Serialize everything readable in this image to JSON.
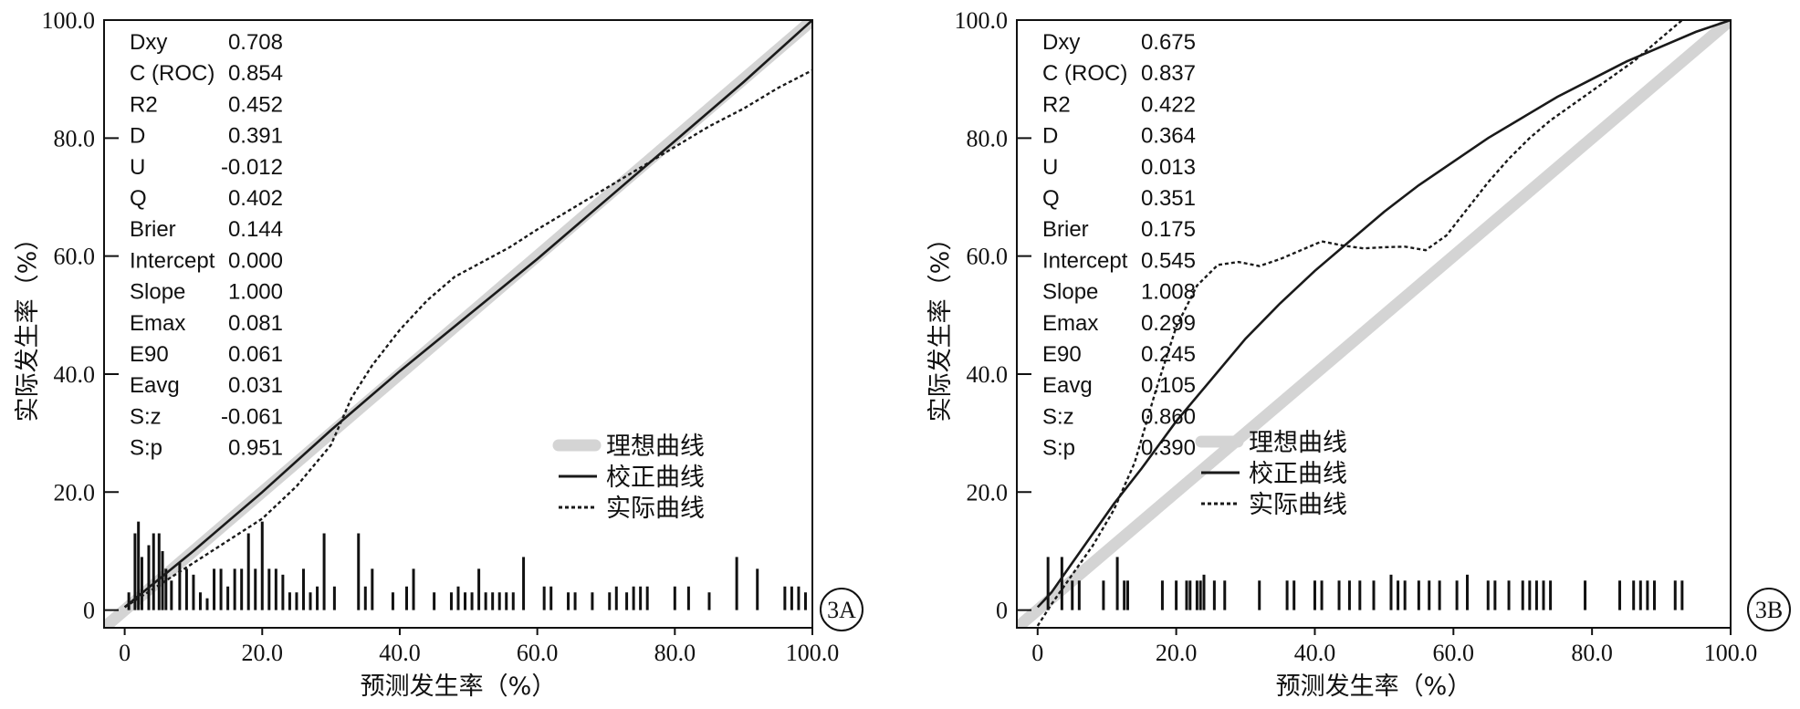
{
  "chart_data": [
    {
      "type": "line",
      "panel_label": "3A",
      "xlabel": "预测发生率（%）",
      "ylabel": "实际发生率（%）",
      "xlim": [
        -3,
        100
      ],
      "ylim": [
        -3,
        100
      ],
      "x_ticks": [
        {
          "value": 0,
          "label": "0"
        },
        {
          "value": 20,
          "label": "20.0"
        },
        {
          "value": 40,
          "label": "40.0"
        },
        {
          "value": 60,
          "label": "60.0"
        },
        {
          "value": 80,
          "label": "80.0"
        },
        {
          "value": 100,
          "label": "100.0"
        }
      ],
      "y_ticks": [
        {
          "value": 0,
          "label": "0"
        },
        {
          "value": 20,
          "label": "20.0"
        },
        {
          "value": 40,
          "label": "40.0"
        },
        {
          "value": 60,
          "label": "60.0"
        },
        {
          "value": 80,
          "label": "80.0"
        },
        {
          "value": 100,
          "label": "100.0"
        }
      ],
      "stats": [
        {
          "name": "Dxy",
          "value": "0.708"
        },
        {
          "name": "C (ROC)",
          "value": "0.854"
        },
        {
          "name": "R2",
          "value": "0.452"
        },
        {
          "name": "D",
          "value": "0.391"
        },
        {
          "name": "U",
          "value": "-0.012"
        },
        {
          "name": "Q",
          "value": "0.402"
        },
        {
          "name": "Brier",
          "value": "0.144"
        },
        {
          "name": "Intercept",
          "value": "0.000"
        },
        {
          "name": "Slope",
          "value": "1.000"
        },
        {
          "name": "Emax",
          "value": "0.081"
        },
        {
          "name": "E90",
          "value": "0.061"
        },
        {
          "name": "Eavg",
          "value": "0.031"
        },
        {
          "name": "S:z",
          "value": "-0.061"
        },
        {
          "name": "S:p",
          "value": "0.951"
        }
      ],
      "series": [
        {
          "name": "理想曲线",
          "style": "ideal",
          "x": [
            -3,
            100
          ],
          "y": [
            -3,
            100
          ]
        },
        {
          "name": "校正曲线",
          "style": "solid",
          "x": [
            0,
            10,
            20,
            30,
            40,
            50,
            60,
            70,
            80,
            90,
            100
          ],
          "y": [
            0.5,
            10,
            20,
            30.5,
            40.5,
            50,
            59.5,
            69.5,
            79.5,
            89.5,
            100
          ]
        },
        {
          "name": "实际曲线",
          "style": "dotted",
          "x": [
            0,
            4,
            8,
            12,
            16,
            20,
            25,
            30,
            33,
            36,
            40,
            44,
            48,
            52,
            56,
            60,
            65,
            70,
            75,
            80,
            85,
            90,
            95,
            100
          ],
          "y": [
            0.5,
            3.5,
            6.5,
            9.5,
            12.5,
            15.5,
            21,
            28,
            36,
            41.5,
            47.5,
            52.5,
            56.5,
            59,
            61.5,
            64.5,
            68,
            71.5,
            75,
            78.5,
            82,
            85,
            88.5,
            91.5
          ]
        }
      ],
      "histogram": {
        "x": [
          0.6,
          1.5,
          2.0,
          2.5,
          3.5,
          4.2,
          5.0,
          5.5,
          6.0,
          6.8,
          8.0,
          9.0,
          10.0,
          11.0,
          12.0,
          13.0,
          14.0,
          15.0,
          16.0,
          17.0,
          18.0,
          19.0,
          20.0,
          21.0,
          22.0,
          23.0,
          24.0,
          25.0,
          26.0,
          27.0,
          28.0,
          29.0,
          30.5,
          34.0,
          35.0,
          36.0,
          39.0,
          41.0,
          42.0,
          45.0,
          47.5,
          48.5,
          49.5,
          50.5,
          51.5,
          52.5,
          53.5,
          54.5,
          55.5,
          56.5,
          58.0,
          61.0,
          62.0,
          64.5,
          65.5,
          68.0,
          70.5,
          71.5,
          73.0,
          74.0,
          75.0,
          76.0,
          80.0,
          82.0,
          85.0,
          89.0,
          92.0,
          96.0,
          97.0,
          98.0,
          99.0
        ],
        "h": [
          3,
          13,
          15,
          9,
          11,
          13,
          13,
          10,
          7,
          5,
          8,
          7,
          6,
          3,
          2,
          7,
          7,
          4,
          7,
          7,
          13,
          7,
          15,
          7,
          7,
          6,
          3,
          3,
          7,
          3,
          4,
          13,
          4,
          13,
          4,
          7,
          3,
          4,
          7,
          3,
          3,
          4,
          3,
          3,
          7,
          3,
          3,
          3,
          3,
          3,
          9,
          4,
          4,
          3,
          3,
          3,
          3,
          4,
          3,
          4,
          4,
          4,
          4,
          4,
          3,
          9,
          7,
          4,
          4,
          4,
          3
        ]
      }
    },
    {
      "type": "line",
      "panel_label": "3B",
      "xlabel": "预测发生率（%）",
      "ylabel": "实际发生率（%）",
      "xlim": [
        -3,
        100
      ],
      "ylim": [
        -3,
        100
      ],
      "x_ticks": [
        {
          "value": 0,
          "label": "0"
        },
        {
          "value": 20,
          "label": "20.0"
        },
        {
          "value": 40,
          "label": "40.0"
        },
        {
          "value": 60,
          "label": "60.0"
        },
        {
          "value": 80,
          "label": "80.0"
        },
        {
          "value": 100,
          "label": "100.0"
        }
      ],
      "y_ticks": [
        {
          "value": 0,
          "label": "0"
        },
        {
          "value": 20,
          "label": "20.0"
        },
        {
          "value": 40,
          "label": "40.0"
        },
        {
          "value": 60,
          "label": "60.0"
        },
        {
          "value": 80,
          "label": "80.0"
        },
        {
          "value": 100,
          "label": "100.0"
        }
      ],
      "stats": [
        {
          "name": "Dxy",
          "value": "0.675"
        },
        {
          "name": "C (ROC)",
          "value": "0.837"
        },
        {
          "name": "R2",
          "value": "0.422"
        },
        {
          "name": "D",
          "value": "0.364"
        },
        {
          "name": "U",
          "value": "0.013"
        },
        {
          "name": "Q",
          "value": "0.351"
        },
        {
          "name": "Brier",
          "value": "0.175"
        },
        {
          "name": "Intercept",
          "value": "0.545"
        },
        {
          "name": "Slope",
          "value": "1.008"
        },
        {
          "name": "Emax",
          "value": "0.299"
        },
        {
          "name": "E90",
          "value": "0.245"
        },
        {
          "name": "Eavg",
          "value": "0.105"
        },
        {
          "name": "S:z",
          "value": "0.860"
        },
        {
          "name": "S:p",
          "value": "0.390"
        }
      ],
      "series": [
        {
          "name": "理想曲线",
          "style": "ideal",
          "x": [
            -3,
            100
          ],
          "y": [
            -3,
            100
          ]
        },
        {
          "name": "校正曲线",
          "style": "solid",
          "x": [
            0,
            2,
            5,
            8,
            11,
            15,
            20,
            25,
            30,
            35,
            40,
            45,
            50,
            55,
            60,
            65,
            70,
            75,
            80,
            85,
            90,
            95,
            100
          ],
          "y": [
            0.5,
            3,
            8,
            13,
            18,
            24,
            32,
            39,
            46,
            52,
            57.5,
            62.5,
            67.5,
            72,
            76,
            80,
            83.5,
            87,
            90,
            93,
            95.5,
            98,
            100
          ]
        },
        {
          "name": "实际曲线",
          "style": "dotted",
          "x": [
            -1,
            2,
            5,
            8,
            11,
            14,
            17,
            20,
            23,
            26,
            29,
            32,
            35,
            38,
            41,
            44,
            47,
            50,
            53,
            56,
            59,
            62,
            65,
            68,
            71,
            74,
            77,
            80,
            83,
            86,
            89,
            92,
            95
          ],
          "y": [
            -4.5,
            1,
            6,
            11,
            17,
            25,
            37,
            48,
            55,
            58.5,
            59,
            58.3,
            59.5,
            61,
            62.5,
            61.8,
            61.3,
            61.5,
            61.6,
            61,
            63.5,
            68,
            72.5,
            76.5,
            80,
            83,
            85.5,
            88,
            90.5,
            93,
            96,
            99,
            102
          ]
        }
      ],
      "histogram": {
        "x": [
          1.5,
          3.5,
          5.0,
          6.0,
          9.5,
          11.5,
          12.5,
          13.0,
          18.0,
          20.0,
          21.5,
          22.0,
          23.0,
          23.5,
          24.0,
          25.5,
          27.0,
          32.0,
          36.0,
          37.0,
          40.0,
          41.0,
          43.5,
          45.0,
          46.5,
          48.5,
          51.0,
          52.0,
          53.0,
          55.0,
          56.5,
          58.0,
          60.5,
          62.0,
          65.0,
          66.0,
          68.0,
          70.0,
          71.0,
          72.0,
          73.0,
          74.0,
          79.0,
          84.0,
          86.0,
          87.0,
          88.0,
          89.0,
          92.0,
          93.0
        ],
        "h": [
          9,
          9,
          5,
          5,
          5,
          9,
          5,
          5,
          5,
          5,
          5,
          5,
          5,
          5,
          6,
          5,
          5,
          5,
          5,
          5,
          5,
          5,
          5,
          5,
          5,
          5,
          6,
          5,
          5,
          5,
          5,
          5,
          5,
          6,
          5,
          5,
          5,
          5,
          5,
          5,
          5,
          5,
          5,
          5,
          5,
          5,
          5,
          5,
          5,
          5
        ]
      }
    }
  ],
  "legend_items": [
    "理想曲线",
    "校正曲线",
    "实际曲线"
  ],
  "colors": {
    "ideal": "#d4d4d4",
    "calibrated": "#1a1a1a",
    "actual": "#1a1a1a",
    "axis": "#111111",
    "spike": "#111111"
  }
}
